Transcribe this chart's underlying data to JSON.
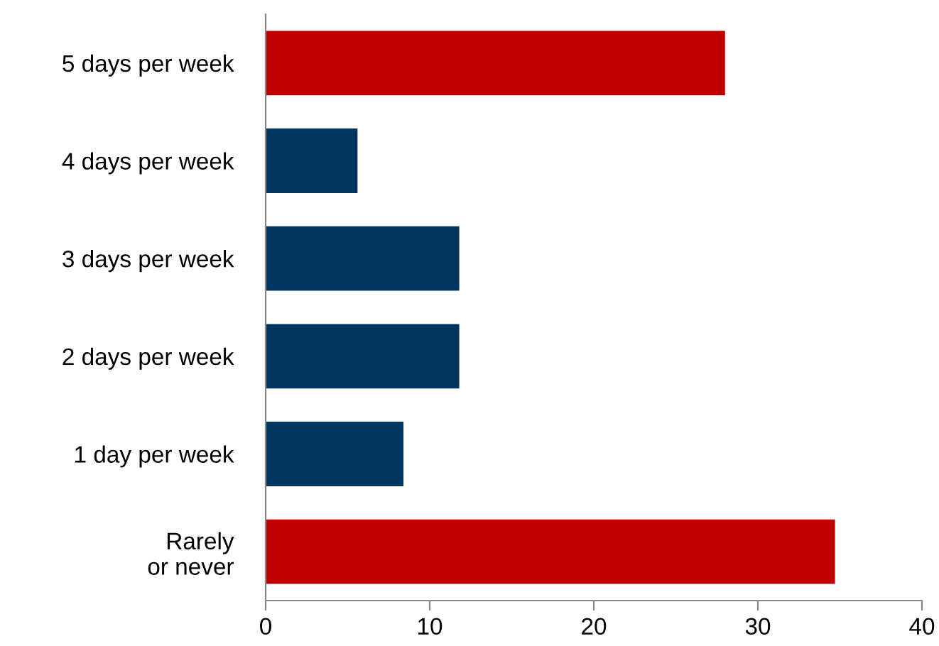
{
  "chart_data": {
    "type": "bar",
    "orientation": "horizontal",
    "categories": [
      "5 days per week",
      "4 days per week",
      "3 days per week",
      "2 days per week",
      "1 day per week",
      "Rarely\nor never"
    ],
    "values": [
      28.0,
      5.6,
      11.8,
      11.8,
      8.4,
      34.7
    ],
    "colors": [
      "#c00000",
      "#003560",
      "#003560",
      "#003560",
      "#003560",
      "#c00000"
    ],
    "xlim": [
      0,
      40
    ],
    "xticks": [
      0,
      10,
      20,
      30,
      40
    ]
  }
}
